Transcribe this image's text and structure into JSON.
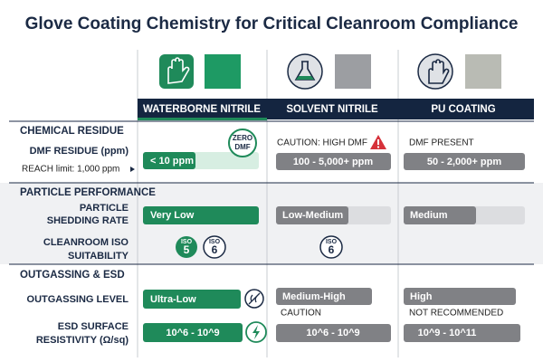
{
  "header": {
    "title": "Glove Coating Chemistry for Critical Cleanroom Compliance"
  },
  "columns": [
    "WATERBORNE NITRILE",
    "SOLVENT NITRILE",
    "PU COATING"
  ],
  "sections": [
    {
      "title": "CHEMICAL RESIDUE",
      "rows": [
        {
          "label": [
            "DMF RESIDUE (ppm)"
          ],
          "note": "REACH limit: 1,000 ppm",
          "cells": [
            {
              "value": "< 10 ppm",
              "badge": [
                "ZERO",
                "DMF"
              ]
            },
            {
              "note": "CAUTION: HIGH DMF",
              "value": "100 - 5,000+ ppm"
            },
            {
              "note": "DMF PRESENT",
              "value": "50 - 2,000+ ppm"
            }
          ]
        }
      ]
    },
    {
      "title": "PARTICLE PERFORMANCE",
      "rows": [
        {
          "label": [
            "PARTICLE",
            "SHEDDING RATE"
          ],
          "cells": [
            {
              "value": "Very Low"
            },
            {
              "value": "Low-Medium"
            },
            {
              "value": "Medium"
            }
          ]
        },
        {
          "label": [
            "CLEANROOM ISO",
            "SUITABILITY"
          ],
          "cells": [
            {
              "badges": [
                {
                  "top": "ISO",
                  "num": "5"
                },
                {
                  "top": "ISO",
                  "num": "6"
                }
              ]
            },
            {
              "badges": [
                {
                  "top": "ISO",
                  "num": "6"
                }
              ]
            },
            {}
          ]
        }
      ]
    },
    {
      "title": "OUTGASSING & ESD",
      "rows": [
        {
          "label": [
            "OUTGASSING LEVEL"
          ],
          "cells": [
            {
              "value": "Ultra-Low"
            },
            {
              "value": "Medium-High",
              "note": "CAUTION"
            },
            {
              "value": "High",
              "note": "NOT RECOMMENDED"
            }
          ]
        },
        {
          "label": [
            "ESD SURFACE",
            "RESISTIVITY (Ω/sq)"
          ],
          "cells": [
            {
              "value": "10^6 - 10^9"
            },
            {
              "value": "10^6 - 10^9"
            },
            {
              "value": "10^9 - 10^11"
            }
          ]
        }
      ]
    }
  ]
}
